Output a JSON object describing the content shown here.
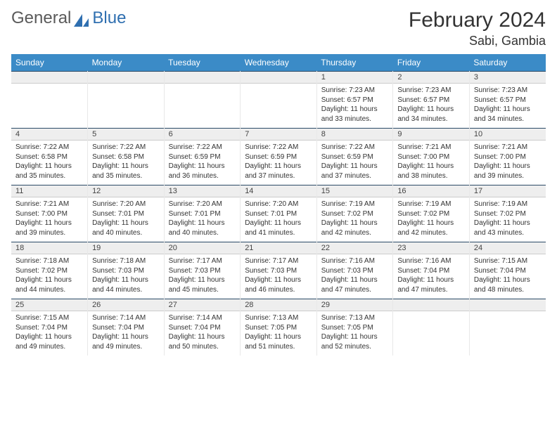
{
  "logo": {
    "general": "General",
    "blue": "Blue"
  },
  "title": "February 2024",
  "location": "Sabi, Gambia",
  "colors": {
    "header_bg": "#3b8bc7",
    "header_text": "#ffffff",
    "band_bg": "#eeeeee",
    "band_border_top": "#2a4a66",
    "text": "#333333"
  },
  "day_headers": [
    "Sunday",
    "Monday",
    "Tuesday",
    "Wednesday",
    "Thursday",
    "Friday",
    "Saturday"
  ],
  "weeks": [
    [
      {
        "num": "",
        "sunrise": "",
        "sunset": "",
        "daylight": ""
      },
      {
        "num": "",
        "sunrise": "",
        "sunset": "",
        "daylight": ""
      },
      {
        "num": "",
        "sunrise": "",
        "sunset": "",
        "daylight": ""
      },
      {
        "num": "",
        "sunrise": "",
        "sunset": "",
        "daylight": ""
      },
      {
        "num": "1",
        "sunrise": "Sunrise: 7:23 AM",
        "sunset": "Sunset: 6:57 PM",
        "daylight": "Daylight: 11 hours and 33 minutes."
      },
      {
        "num": "2",
        "sunrise": "Sunrise: 7:23 AM",
        "sunset": "Sunset: 6:57 PM",
        "daylight": "Daylight: 11 hours and 34 minutes."
      },
      {
        "num": "3",
        "sunrise": "Sunrise: 7:23 AM",
        "sunset": "Sunset: 6:57 PM",
        "daylight": "Daylight: 11 hours and 34 minutes."
      }
    ],
    [
      {
        "num": "4",
        "sunrise": "Sunrise: 7:22 AM",
        "sunset": "Sunset: 6:58 PM",
        "daylight": "Daylight: 11 hours and 35 minutes."
      },
      {
        "num": "5",
        "sunrise": "Sunrise: 7:22 AM",
        "sunset": "Sunset: 6:58 PM",
        "daylight": "Daylight: 11 hours and 35 minutes."
      },
      {
        "num": "6",
        "sunrise": "Sunrise: 7:22 AM",
        "sunset": "Sunset: 6:59 PM",
        "daylight": "Daylight: 11 hours and 36 minutes."
      },
      {
        "num": "7",
        "sunrise": "Sunrise: 7:22 AM",
        "sunset": "Sunset: 6:59 PM",
        "daylight": "Daylight: 11 hours and 37 minutes."
      },
      {
        "num": "8",
        "sunrise": "Sunrise: 7:22 AM",
        "sunset": "Sunset: 6:59 PM",
        "daylight": "Daylight: 11 hours and 37 minutes."
      },
      {
        "num": "9",
        "sunrise": "Sunrise: 7:21 AM",
        "sunset": "Sunset: 7:00 PM",
        "daylight": "Daylight: 11 hours and 38 minutes."
      },
      {
        "num": "10",
        "sunrise": "Sunrise: 7:21 AM",
        "sunset": "Sunset: 7:00 PM",
        "daylight": "Daylight: 11 hours and 39 minutes."
      }
    ],
    [
      {
        "num": "11",
        "sunrise": "Sunrise: 7:21 AM",
        "sunset": "Sunset: 7:00 PM",
        "daylight": "Daylight: 11 hours and 39 minutes."
      },
      {
        "num": "12",
        "sunrise": "Sunrise: 7:20 AM",
        "sunset": "Sunset: 7:01 PM",
        "daylight": "Daylight: 11 hours and 40 minutes."
      },
      {
        "num": "13",
        "sunrise": "Sunrise: 7:20 AM",
        "sunset": "Sunset: 7:01 PM",
        "daylight": "Daylight: 11 hours and 40 minutes."
      },
      {
        "num": "14",
        "sunrise": "Sunrise: 7:20 AM",
        "sunset": "Sunset: 7:01 PM",
        "daylight": "Daylight: 11 hours and 41 minutes."
      },
      {
        "num": "15",
        "sunrise": "Sunrise: 7:19 AM",
        "sunset": "Sunset: 7:02 PM",
        "daylight": "Daylight: 11 hours and 42 minutes."
      },
      {
        "num": "16",
        "sunrise": "Sunrise: 7:19 AM",
        "sunset": "Sunset: 7:02 PM",
        "daylight": "Daylight: 11 hours and 42 minutes."
      },
      {
        "num": "17",
        "sunrise": "Sunrise: 7:19 AM",
        "sunset": "Sunset: 7:02 PM",
        "daylight": "Daylight: 11 hours and 43 minutes."
      }
    ],
    [
      {
        "num": "18",
        "sunrise": "Sunrise: 7:18 AM",
        "sunset": "Sunset: 7:02 PM",
        "daylight": "Daylight: 11 hours and 44 minutes."
      },
      {
        "num": "19",
        "sunrise": "Sunrise: 7:18 AM",
        "sunset": "Sunset: 7:03 PM",
        "daylight": "Daylight: 11 hours and 44 minutes."
      },
      {
        "num": "20",
        "sunrise": "Sunrise: 7:17 AM",
        "sunset": "Sunset: 7:03 PM",
        "daylight": "Daylight: 11 hours and 45 minutes."
      },
      {
        "num": "21",
        "sunrise": "Sunrise: 7:17 AM",
        "sunset": "Sunset: 7:03 PM",
        "daylight": "Daylight: 11 hours and 46 minutes."
      },
      {
        "num": "22",
        "sunrise": "Sunrise: 7:16 AM",
        "sunset": "Sunset: 7:03 PM",
        "daylight": "Daylight: 11 hours and 47 minutes."
      },
      {
        "num": "23",
        "sunrise": "Sunrise: 7:16 AM",
        "sunset": "Sunset: 7:04 PM",
        "daylight": "Daylight: 11 hours and 47 minutes."
      },
      {
        "num": "24",
        "sunrise": "Sunrise: 7:15 AM",
        "sunset": "Sunset: 7:04 PM",
        "daylight": "Daylight: 11 hours and 48 minutes."
      }
    ],
    [
      {
        "num": "25",
        "sunrise": "Sunrise: 7:15 AM",
        "sunset": "Sunset: 7:04 PM",
        "daylight": "Daylight: 11 hours and 49 minutes."
      },
      {
        "num": "26",
        "sunrise": "Sunrise: 7:14 AM",
        "sunset": "Sunset: 7:04 PM",
        "daylight": "Daylight: 11 hours and 49 minutes."
      },
      {
        "num": "27",
        "sunrise": "Sunrise: 7:14 AM",
        "sunset": "Sunset: 7:04 PM",
        "daylight": "Daylight: 11 hours and 50 minutes."
      },
      {
        "num": "28",
        "sunrise": "Sunrise: 7:13 AM",
        "sunset": "Sunset: 7:05 PM",
        "daylight": "Daylight: 11 hours and 51 minutes."
      },
      {
        "num": "29",
        "sunrise": "Sunrise: 7:13 AM",
        "sunset": "Sunset: 7:05 PM",
        "daylight": "Daylight: 11 hours and 52 minutes."
      },
      {
        "num": "",
        "sunrise": "",
        "sunset": "",
        "daylight": ""
      },
      {
        "num": "",
        "sunrise": "",
        "sunset": "",
        "daylight": ""
      }
    ]
  ]
}
